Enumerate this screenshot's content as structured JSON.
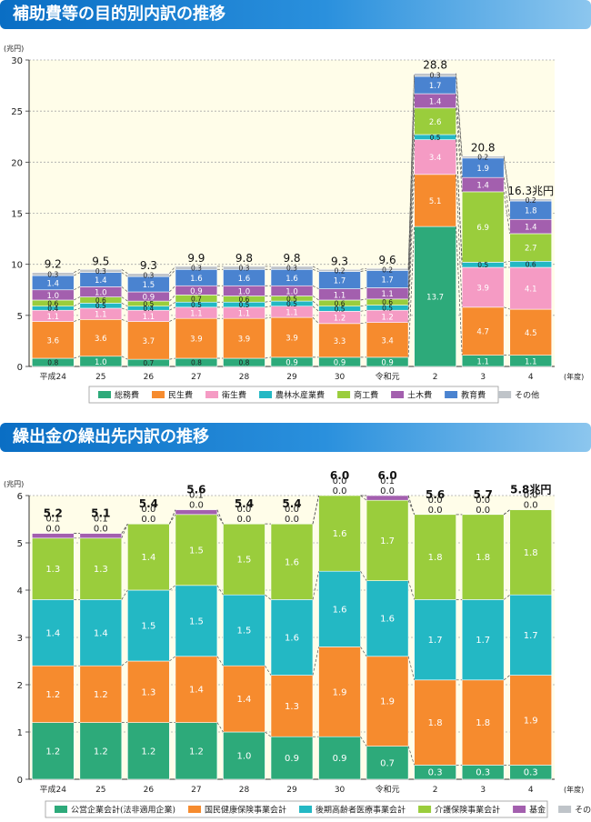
{
  "header1": {
    "title": "補助費等の目的別内訳の推移"
  },
  "header2": {
    "title": "繰出金の繰出先内訳の推移"
  },
  "chart_data": [
    {
      "type": "bar",
      "stacked": true,
      "title": "補助費等の目的別内訳の推移",
      "ylabel": "(兆円)",
      "xlabel": "(年度)",
      "ylim": [
        0,
        30
      ],
      "yticks": [
        0,
        5,
        10,
        15,
        20,
        25,
        30
      ],
      "grid": true,
      "legend_position": "bottom",
      "categories": [
        "平成24",
        "25",
        "26",
        "27",
        "28",
        "29",
        "30",
        "令和元",
        "2",
        "3",
        "4"
      ],
      "series": [
        {
          "name": "総務費",
          "color": "#2daa7a",
          "values": [
            0.8,
            1.0,
            0.7,
            0.8,
            0.8,
            0.9,
            0.9,
            0.9,
            13.7,
            1.1,
            1.1
          ]
        },
        {
          "name": "民生費",
          "color": "#f68b2e",
          "values": [
            3.6,
            3.6,
            3.7,
            3.9,
            3.9,
            3.9,
            3.3,
            3.4,
            5.1,
            4.7,
            4.5
          ]
        },
        {
          "name": "衛生費",
          "color": "#f59bc4",
          "values": [
            1.1,
            1.1,
            1.1,
            1.1,
            1.1,
            1.1,
            1.2,
            1.2,
            3.4,
            3.9,
            4.1
          ]
        },
        {
          "name": "農林水産業費",
          "color": "#23b8c4",
          "values": [
            0.4,
            0.5,
            0.4,
            0.5,
            0.5,
            0.5,
            0.5,
            0.5,
            0.5,
            0.5,
            0.6
          ]
        },
        {
          "name": "商工費",
          "color": "#9acd3c",
          "values": [
            0.6,
            0.6,
            0.5,
            0.7,
            0.6,
            0.5,
            0.6,
            0.6,
            2.6,
            6.9,
            2.7
          ]
        },
        {
          "name": "土木費",
          "color": "#a35fae",
          "values": [
            1.0,
            1.0,
            0.9,
            0.9,
            1.0,
            1.0,
            1.1,
            1.1,
            1.4,
            1.4,
            1.4
          ]
        },
        {
          "name": "教育費",
          "color": "#4a83d0",
          "values": [
            1.4,
            1.4,
            1.5,
            1.6,
            1.6,
            1.6,
            1.7,
            1.7,
            1.7,
            1.9,
            1.8
          ]
        },
        {
          "name": "その他",
          "color": "#bfc4c9",
          "values": [
            0.3,
            0.3,
            0.3,
            0.3,
            0.3,
            0.3,
            0.2,
            0.2,
            0.3,
            0.2,
            0.2
          ]
        }
      ],
      "totals": [
        "9.2",
        "9.5",
        "9.3",
        "9.9",
        "9.8",
        "9.8",
        "9.3",
        "9.6",
        "28.8",
        "20.8",
        "16.3兆円"
      ]
    },
    {
      "type": "bar",
      "stacked": true,
      "title": "繰出金の繰出先内訳の推移",
      "ylabel": "(兆円)",
      "xlabel": "(年度)",
      "ylim": [
        0,
        6
      ],
      "yticks": [
        0,
        1,
        2,
        3,
        4,
        5,
        6
      ],
      "grid": true,
      "legend_position": "bottom",
      "categories": [
        "平成24",
        "25",
        "26",
        "27",
        "28",
        "29",
        "30",
        "令和元",
        "2",
        "3",
        "4"
      ],
      "series": [
        {
          "name": "公営企業会計(法非適用企業)",
          "color": "#2daa7a",
          "values": [
            1.2,
            1.2,
            1.2,
            1.2,
            1.0,
            0.9,
            0.9,
            0.7,
            0.3,
            0.3,
            0.3
          ]
        },
        {
          "name": "国民健康保険事業会計",
          "color": "#f68b2e",
          "values": [
            1.2,
            1.2,
            1.3,
            1.4,
            1.4,
            1.3,
            1.9,
            1.9,
            1.8,
            1.8,
            1.9
          ]
        },
        {
          "name": "後期高齢者医療事業会計",
          "color": "#23b8c4",
          "values": [
            1.4,
            1.4,
            1.5,
            1.5,
            1.5,
            1.6,
            1.6,
            1.6,
            1.7,
            1.7,
            1.7
          ]
        },
        {
          "name": "介護保険事業会計",
          "color": "#9acd3c",
          "values": [
            1.3,
            1.3,
            1.4,
            1.5,
            1.5,
            1.6,
            1.6,
            1.7,
            1.8,
            1.8,
            1.8
          ]
        },
        {
          "name": "基金",
          "color": "#a35fae",
          "values": [
            0.1,
            0.1,
            0.0,
            0.1,
            0.0,
            0.0,
            0.0,
            0.1,
            0.0,
            0.0,
            0.0
          ]
        },
        {
          "name": "その他",
          "color": "#bfc4c9",
          "values": [
            0.0,
            0.0,
            0.0,
            0.0,
            0.0,
            0.0,
            0.0,
            0.0,
            0.0,
            0.0,
            0.0
          ]
        }
      ],
      "totals": [
        "5.2",
        "5.1",
        "5.4",
        "5.6",
        "5.4",
        "5.4",
        "6.0",
        "6.0",
        "5.6",
        "5.7",
        "5.8兆円"
      ]
    }
  ]
}
